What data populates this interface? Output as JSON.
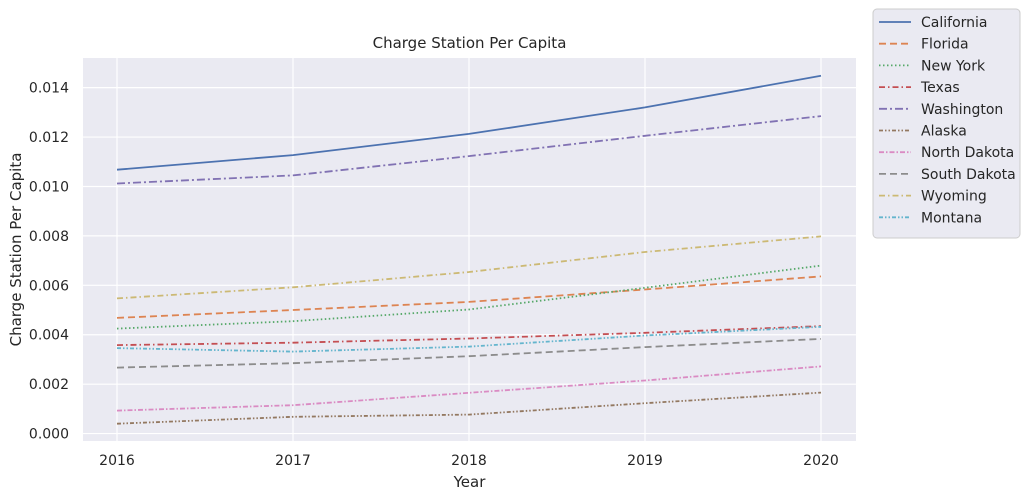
{
  "chart_data": {
    "type": "line",
    "title": "Charge Station Per Capita",
    "xlabel": "Year",
    "ylabel": "Charge Station Per Capita",
    "x": [
      "2016",
      "2017",
      "2018",
      "2019",
      "2020"
    ],
    "ylim": [
      -0.0003,
      0.0152
    ],
    "yticks": [
      0.0,
      0.002,
      0.004,
      0.006,
      0.008,
      0.01,
      0.012,
      0.014
    ],
    "ytick_labels": [
      "0.000",
      "0.002",
      "0.004",
      "0.006",
      "0.008",
      "0.010",
      "0.012",
      "0.014"
    ],
    "grid": true,
    "legend_position": "outside-top-right",
    "series": [
      {
        "name": "California",
        "color": "#4c72b0",
        "dash": "solid",
        "values": [
          0.01068,
          0.01127,
          0.01213,
          0.0132,
          0.01448
        ]
      },
      {
        "name": "Florida",
        "color": "#dd8452",
        "dash": "dashed",
        "values": [
          0.00468,
          0.005,
          0.00533,
          0.00583,
          0.00636
        ]
      },
      {
        "name": "New York",
        "color": "#55a868",
        "dash": "dotted",
        "values": [
          0.00425,
          0.00455,
          0.00502,
          0.0059,
          0.0068
        ]
      },
      {
        "name": "Texas",
        "color": "#c44e52",
        "dash": "dashdot",
        "values": [
          0.00358,
          0.00368,
          0.00385,
          0.00408,
          0.00435
        ]
      },
      {
        "name": "Washington",
        "color": "#8172b3",
        "dash": "dashdot-long",
        "values": [
          0.01012,
          0.01045,
          0.01123,
          0.01205,
          0.01285
        ]
      },
      {
        "name": "Alaska",
        "color": "#937860",
        "dash": "dashdotdot",
        "values": [
          0.0004,
          0.00068,
          0.00077,
          0.00123,
          0.00166
        ]
      },
      {
        "name": "North Dakota",
        "color": "#da8bc3",
        "dash": "dashdot-short",
        "values": [
          0.00093,
          0.00115,
          0.00165,
          0.00215,
          0.00272
        ]
      },
      {
        "name": "South Dakota",
        "color": "#8c8c8c",
        "dash": "dashed",
        "values": [
          0.00267,
          0.00285,
          0.00313,
          0.0035,
          0.00383
        ]
      },
      {
        "name": "Wyoming",
        "color": "#ccb974",
        "dash": "dashdot",
        "values": [
          0.00547,
          0.00592,
          0.00654,
          0.00735,
          0.00798
        ]
      },
      {
        "name": "Montana",
        "color": "#64b5cd",
        "dash": "dashdotdot",
        "values": [
          0.00346,
          0.00332,
          0.00352,
          0.00397,
          0.00432
        ]
      }
    ]
  }
}
